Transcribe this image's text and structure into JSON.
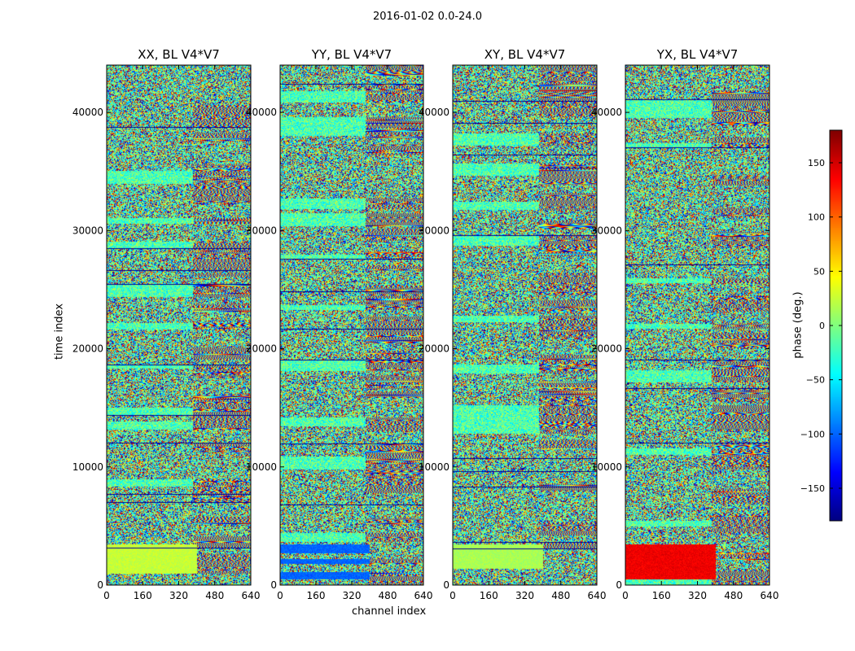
{
  "chart_data": {
    "type": "heatmap",
    "title": "2016-01-02 0.0-24.0",
    "xlabel": "channel index",
    "ylabel": "time index",
    "xlim": [
      0,
      640
    ],
    "ylim": [
      0,
      44000
    ],
    "xticks": [
      0,
      160,
      320,
      480,
      640
    ],
    "yticks": [
      0,
      10000,
      20000,
      30000,
      40000
    ],
    "xtick_labels": [
      "0",
      "160",
      "320",
      "480",
      "640"
    ],
    "ytick_labels": [
      "0",
      "10000",
      "20000",
      "30000",
      "40000"
    ],
    "colormap": "jet",
    "panels": [
      {
        "title": "XX, BL V4*V7",
        "low_band_phase": 25
      },
      {
        "title": "YY, BL V4*V7",
        "low_band_phase": -100
      },
      {
        "title": "XY, BL V4*V7",
        "low_band_phase": 15
      },
      {
        "title": "YX, BL V4*V7",
        "low_band_phase": 140
      }
    ],
    "colorbar": {
      "label": "phase (deg.)",
      "range": [
        -180,
        180
      ],
      "ticks": [
        150,
        100,
        50,
        0,
        -50,
        -100,
        -150
      ],
      "tick_labels": [
        "150",
        "100",
        "50",
        "0",
        "−50",
        "−100",
        "−150"
      ]
    }
  },
  "colors": {
    "jet": [
      "#00007f",
      "#0000ff",
      "#007fff",
      "#00ffff",
      "#7fff7f",
      "#ffff00",
      "#ff7f00",
      "#ff0000",
      "#7f0000"
    ],
    "axis": "#000000",
    "background": "#ffffff"
  }
}
